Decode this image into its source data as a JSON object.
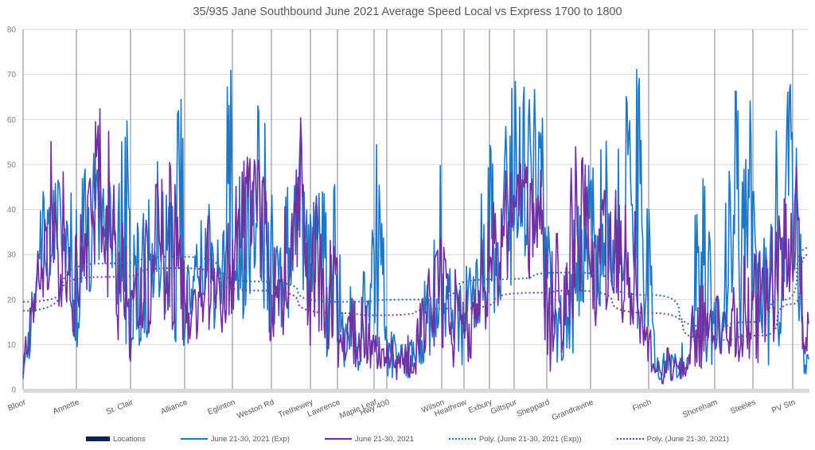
{
  "chart_data": {
    "type": "line",
    "title": "35/935 Jane Southbound June 2021 Average Speed Local vs Express 1700 to 1800",
    "xlabel": "",
    "ylabel": "",
    "ylim": [
      0,
      80
    ],
    "yticks": [
      0,
      10,
      20,
      30,
      40,
      50,
      60,
      70,
      80
    ],
    "grid": true,
    "legend_position": "bottom",
    "x_domain": [
      0,
      1000
    ],
    "locations": [
      {
        "name": "Bloor",
        "x": 0
      },
      {
        "name": "Annette",
        "x": 67.9
      },
      {
        "name": "St. Clair",
        "x": 136.8
      },
      {
        "name": "Alliance",
        "x": 205.7
      },
      {
        "name": "Eglinton",
        "x": 266.5
      },
      {
        "name": "Weston Rd",
        "x": 316.1
      },
      {
        "name": "Trethewey",
        "x": 365.8
      },
      {
        "name": "Lawrence",
        "x": 400.2
      },
      {
        "name": "Maple Leaf",
        "x": 446.8
      },
      {
        "name": "Hwy 400",
        "x": 463.0
      },
      {
        "name": "Wilson",
        "x": 532.9
      },
      {
        "name": "Heathrow",
        "x": 561.3
      },
      {
        "name": "Exbury",
        "x": 593.7
      },
      {
        "name": "Giltspur",
        "x": 625.1
      },
      {
        "name": "Sheppard",
        "x": 666.7
      },
      {
        "name": "Grandravine",
        "x": 722.4
      },
      {
        "name": "Finch",
        "x": 796.4
      },
      {
        "name": "Shoreham",
        "x": 880.4
      },
      {
        "name": "Steeles",
        "x": 929.1
      },
      {
        "name": "PV Stn",
        "x": 979.7
      }
    ],
    "series": [
      {
        "name": "Locations",
        "kind": "bar-marker",
        "color": "#0d1f5c"
      },
      {
        "name": "June 21-30, 2021 (Exp)",
        "kind": "line",
        "color": "#1f77c4",
        "envelope": [
          [
            0,
            2,
            4
          ],
          [
            10,
            8,
            20
          ],
          [
            20,
            20,
            38
          ],
          [
            35,
            25,
            55
          ],
          [
            55,
            22,
            50
          ],
          [
            67,
            8,
            40
          ],
          [
            80,
            18,
            52
          ],
          [
            100,
            30,
            55
          ],
          [
            120,
            18,
            50
          ],
          [
            131,
            5,
            80
          ],
          [
            137,
            5,
            30
          ],
          [
            150,
            10,
            45
          ],
          [
            175,
            15,
            55
          ],
          [
            190,
            12,
            50
          ],
          [
            200,
            8,
            70
          ],
          [
            210,
            12,
            35
          ],
          [
            230,
            15,
            40
          ],
          [
            250,
            12,
            48
          ],
          [
            262,
            20,
            77
          ],
          [
            275,
            12,
            50
          ],
          [
            295,
            25,
            66
          ],
          [
            316,
            10,
            55
          ],
          [
            330,
            8,
            40
          ],
          [
            350,
            25,
            60
          ],
          [
            366,
            12,
            55
          ],
          [
            380,
            8,
            45
          ],
          [
            400,
            5,
            48
          ],
          [
            420,
            4,
            20
          ],
          [
            440,
            5,
            30
          ],
          [
            452,
            10,
            61
          ],
          [
            463,
            3,
            20
          ],
          [
            480,
            2,
            10
          ],
          [
            500,
            3,
            15
          ],
          [
            520,
            8,
            33
          ],
          [
            533,
            10,
            55
          ],
          [
            545,
            8,
            30
          ],
          [
            561,
            5,
            25
          ],
          [
            575,
            8,
            35
          ],
          [
            594,
            10,
            55
          ],
          [
            605,
            15,
            45
          ],
          [
            625,
            25,
            80
          ],
          [
            640,
            30,
            78
          ],
          [
            655,
            28,
            80
          ],
          [
            667,
            10,
            50
          ],
          [
            680,
            5,
            35
          ],
          [
            700,
            8,
            45
          ],
          [
            715,
            15,
            74
          ],
          [
            722,
            10,
            50
          ],
          [
            740,
            15,
            55
          ],
          [
            760,
            20,
            60
          ],
          [
            780,
            15,
            77
          ],
          [
            796,
            5,
            50
          ],
          [
            805,
            2,
            10
          ],
          [
            830,
            2,
            8
          ],
          [
            850,
            3,
            20
          ],
          [
            860,
            5,
            58
          ],
          [
            880,
            3,
            25
          ],
          [
            895,
            8,
            45
          ],
          [
            905,
            15,
            72
          ],
          [
            915,
            10,
            56
          ],
          [
            925,
            20,
            80
          ],
          [
            935,
            5,
            30
          ],
          [
            950,
            5,
            40
          ],
          [
            965,
            10,
            72
          ],
          [
            975,
            15,
            70
          ],
          [
            985,
            20,
            60
          ],
          [
            995,
            1,
            20
          ],
          [
            1000,
            2,
            8
          ]
        ],
        "trend": [
          [
            0,
            17.5
          ],
          [
            100,
            28
          ],
          [
            200,
            29.5
          ],
          [
            300,
            24
          ],
          [
            400,
            19.5
          ],
          [
            500,
            20
          ],
          [
            600,
            24.5
          ],
          [
            700,
            26
          ],
          [
            800,
            21
          ],
          [
            870,
            14
          ],
          [
            930,
            15
          ],
          [
            970,
            20
          ],
          [
            1000,
            31.5
          ]
        ]
      },
      {
        "name": "June 21-30, 2021",
        "kind": "line",
        "color": "#7030a0",
        "envelope": [
          [
            0,
            0,
            12
          ],
          [
            10,
            4,
            20
          ],
          [
            20,
            15,
            45
          ],
          [
            35,
            18,
            58
          ],
          [
            55,
            18,
            50
          ],
          [
            67,
            8,
            35
          ],
          [
            80,
            15,
            45
          ],
          [
            97,
            30,
            66
          ],
          [
            110,
            18,
            60
          ],
          [
            130,
            5,
            35
          ],
          [
            137,
            5,
            25
          ],
          [
            150,
            12,
            42
          ],
          [
            175,
            12,
            50
          ],
          [
            190,
            12,
            52
          ],
          [
            210,
            10,
            35
          ],
          [
            230,
            12,
            38
          ],
          [
            250,
            12,
            42
          ],
          [
            266,
            15,
            45
          ],
          [
            280,
            25,
            50
          ],
          [
            295,
            30,
            60
          ],
          [
            316,
            8,
            40
          ],
          [
            330,
            5,
            35
          ],
          [
            345,
            30,
            72
          ],
          [
            366,
            8,
            50
          ],
          [
            380,
            10,
            40
          ],
          [
            400,
            5,
            30
          ],
          [
            420,
            5,
            20
          ],
          [
            440,
            5,
            22
          ],
          [
            463,
            2,
            12
          ],
          [
            480,
            2,
            10
          ],
          [
            500,
            3,
            15
          ],
          [
            520,
            10,
            30
          ],
          [
            533,
            5,
            35
          ],
          [
            561,
            5,
            25
          ],
          [
            580,
            8,
            30
          ],
          [
            600,
            15,
            45
          ],
          [
            625,
            20,
            55
          ],
          [
            640,
            25,
            60
          ],
          [
            655,
            20,
            62
          ],
          [
            667,
            3,
            30
          ],
          [
            690,
            5,
            40
          ],
          [
            705,
            10,
            59
          ],
          [
            722,
            10,
            45
          ],
          [
            750,
            15,
            45
          ],
          [
            780,
            10,
            40
          ],
          [
            796,
            5,
            20
          ],
          [
            810,
            1,
            8
          ],
          [
            840,
            2,
            12
          ],
          [
            860,
            5,
            25
          ],
          [
            880,
            3,
            20
          ],
          [
            900,
            5,
            30
          ],
          [
            930,
            5,
            30
          ],
          [
            950,
            8,
            35
          ],
          [
            970,
            15,
            50
          ],
          [
            985,
            25,
            55
          ],
          [
            995,
            2,
            15
          ],
          [
            1000,
            3,
            19
          ]
        ],
        "trend": [
          [
            0,
            19.5
          ],
          [
            100,
            25
          ],
          [
            200,
            27
          ],
          [
            300,
            22
          ],
          [
            400,
            17
          ],
          [
            450,
            16.5
          ],
          [
            550,
            18
          ],
          [
            650,
            21.5
          ],
          [
            700,
            22
          ],
          [
            800,
            17
          ],
          [
            880,
            11
          ],
          [
            940,
            12
          ],
          [
            980,
            19
          ],
          [
            1000,
            30
          ]
        ]
      },
      {
        "name": "Poly. (June 21-30, 2021 (Exp))",
        "kind": "trend",
        "color": "#1f77c4"
      },
      {
        "name": "Poly. (June 21-30, 2021)",
        "kind": "trend",
        "color": "#7030a0"
      }
    ]
  }
}
